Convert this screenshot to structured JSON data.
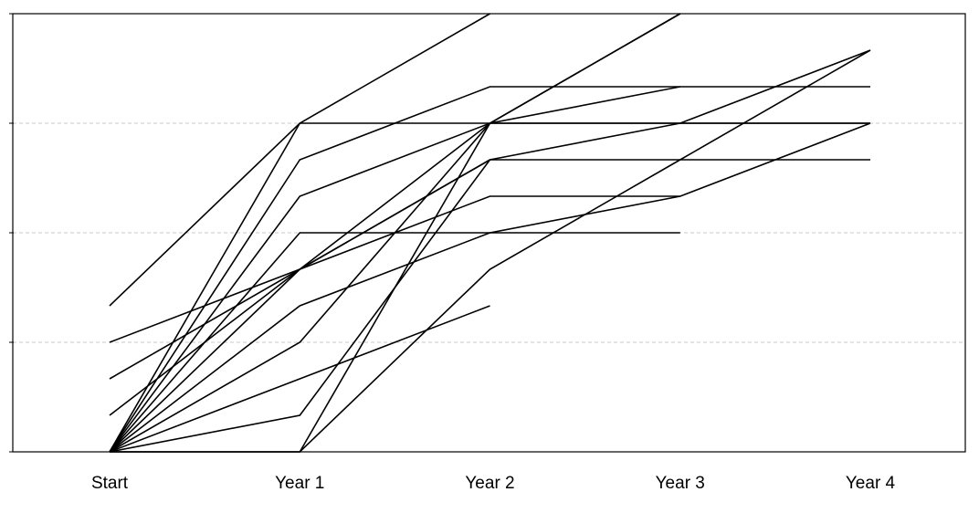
{
  "chart_data": {
    "type": "line",
    "title": "",
    "xlabel": "",
    "ylabel": "",
    "categories": [
      "Start",
      "Year 1",
      "Year 2",
      "Year 3",
      "Year 4"
    ],
    "ylim": [
      0,
      12
    ],
    "yticks": [
      0,
      3,
      6,
      9,
      12
    ],
    "grid": "horizontal-dashed",
    "legend": "none",
    "colors": {
      "line": "#000000",
      "grid": "#c8c8c8"
    },
    "series": [
      {
        "values": [
          4,
          9,
          12,
          null,
          null
        ]
      },
      {
        "values": [
          3,
          5,
          8,
          9,
          9
        ]
      },
      {
        "values": [
          2,
          5,
          7,
          7,
          null
        ]
      },
      {
        "values": [
          1,
          5,
          9,
          12,
          null
        ]
      },
      {
        "values": [
          0,
          9,
          9,
          9,
          9
        ]
      },
      {
        "values": [
          0,
          8,
          10,
          10,
          null
        ]
      },
      {
        "values": [
          0,
          7,
          9,
          9,
          11
        ]
      },
      {
        "values": [
          0,
          6,
          6,
          6,
          null
        ]
      },
      {
        "values": [
          0,
          5,
          8,
          8,
          8
        ]
      },
      {
        "values": [
          0,
          3,
          9,
          12,
          null
        ]
      },
      {
        "values": [
          0,
          2,
          4,
          null,
          null
        ]
      },
      {
        "values": [
          0,
          1,
          8,
          null,
          null
        ]
      },
      {
        "values": [
          0,
          0,
          9,
          10,
          10
        ]
      },
      {
        "values": [
          0,
          0,
          5,
          8,
          11
        ]
      },
      {
        "values": [
          0,
          4,
          6,
          7,
          9
        ]
      }
    ]
  }
}
